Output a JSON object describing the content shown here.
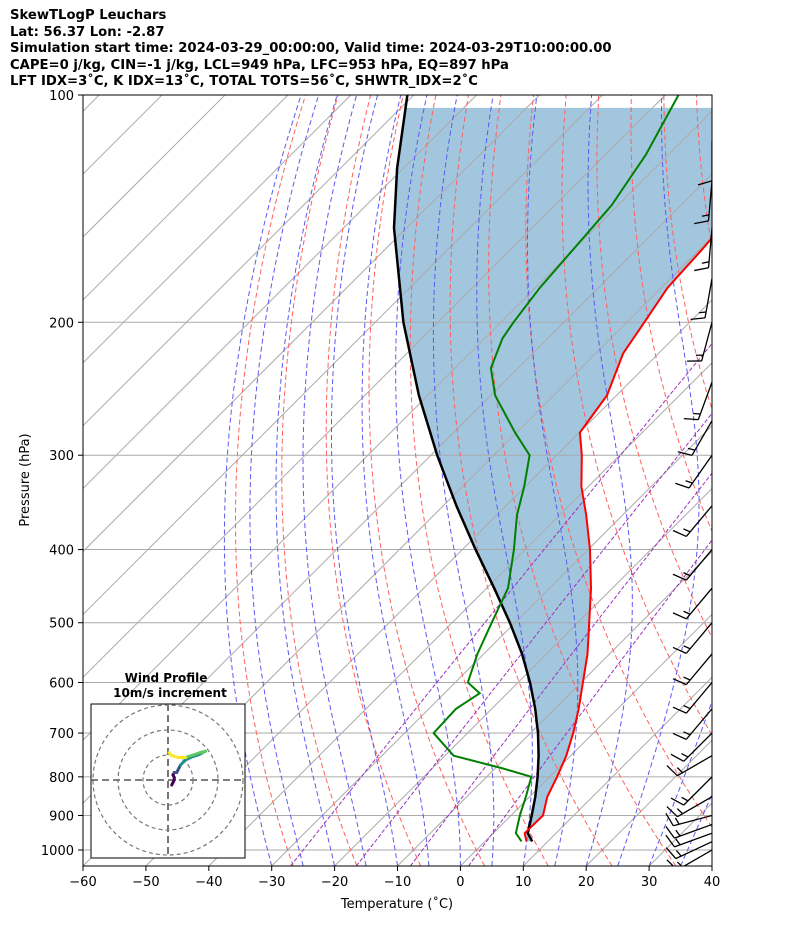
{
  "title": {
    "line1": "SkewTLogP Leuchars",
    "line2": "Lat: 56.37   Lon: -2.87",
    "line3": "Simulation start time: 2024-03-29_00:00:00, Valid time: 2024-03-29T10:00:00.00",
    "line4": "CAPE=0 j/kg, CIN=-1 j/kg, LCL=949 hPa, LFC=953 hPa, EQ=897 hPa",
    "line5": "LFT IDX=3˚C, K IDX=13˚C, TOTAL TOTS=56˚C, SHWTR_IDX=2˚C"
  },
  "colors": {
    "temperature": "#ff0000",
    "dewpoint": "#008000",
    "parcel": "#000000",
    "shading": "#a3c6df",
    "dry_adiabat": "#ff6060",
    "moist_adiabat": "#5a5af0",
    "mixing_ratio": "#9b30c0",
    "isotherm": "#aaaaaa",
    "isobar": "#aaaaaa",
    "barb": "#000000"
  },
  "chart_data": {
    "type": "skew-t",
    "xlabel": "Temperature (˚C)",
    "ylabel": "Pressure (hPa)",
    "xlim": [
      -60,
      40
    ],
    "ylim": [
      1050,
      100
    ],
    "x_ticks": [
      "−60",
      "−50",
      "−40",
      "−30",
      "−20",
      "−10",
      "0",
      "10",
      "20",
      "30",
      "40"
    ],
    "x_tick_values": [
      -60,
      -50,
      -40,
      -30,
      -20,
      -10,
      0,
      10,
      20,
      30,
      40
    ],
    "y_ticks": [
      "100",
      "200",
      "300",
      "400",
      "500",
      "600",
      "700",
      "800",
      "900",
      "1000"
    ],
    "y_tick_values": [
      100,
      200,
      300,
      400,
      500,
      600,
      700,
      800,
      900,
      1000
    ],
    "grid": true,
    "log_pressure": true,
    "temperature": {
      "pressure": [
        974,
        950,
        900,
        850,
        800,
        750,
        700,
        650,
        600,
        550,
        500,
        450,
        400,
        360,
        330,
        300,
        280,
        250,
        220,
        200,
        180,
        160,
        140,
        120,
        100
      ],
      "temp": [
        6.6,
        5.0,
        5.1,
        2.8,
        1.2,
        -0.7,
        -3.2,
        -6.2,
        -9.7,
        -13.5,
        -18.2,
        -23.4,
        -29.7,
        -35.8,
        -41.1,
        -46.0,
        -49.9,
        -51.5,
        -55.6,
        -57.2,
        -59.0,
        -59.6,
        -60.6,
        -62.1,
        -63.8
      ]
    },
    "dewpoint": {
      "pressure": [
        974,
        950,
        900,
        850,
        800,
        780,
        750,
        700,
        650,
        620,
        600,
        550,
        500,
        450,
        400,
        360,
        330,
        300,
        280,
        250,
        230,
        210,
        200,
        180,
        160,
        140,
        120,
        100
      ],
      "dewpoint": [
        5.8,
        3.6,
        1.4,
        -0.6,
        -2.9,
        -8.7,
        -18.6,
        -25.4,
        -25.7,
        -24.4,
        -28.0,
        -31.0,
        -33.7,
        -36.6,
        -41.8,
        -46.8,
        -50.2,
        -54.3,
        -60.2,
        -69.3,
        -74.3,
        -77.2,
        -78.0,
        -79.3,
        -80.1,
        -81.0,
        -83.6,
        -87.9
      ]
    },
    "parcel": {
      "pressure": [
        974,
        950,
        900,
        850,
        800,
        750,
        700,
        650,
        600,
        550,
        500,
        450,
        400,
        350,
        300,
        250,
        200,
        150,
        125,
        100
      ],
      "temp": [
        7.5,
        5.5,
        3.3,
        0.9,
        -1.9,
        -5.1,
        -8.8,
        -13.1,
        -18.1,
        -23.9,
        -30.8,
        -38.8,
        -47.9,
        -57.9,
        -69.0,
        -81.4,
        -95.5,
        -112.0,
        -121.0,
        -131.0
      ]
    },
    "wind_barbs": [
      {
        "pressure": 1000,
        "speed_kt": 15,
        "direction_deg": 240
      },
      {
        "pressure": 975,
        "speed_kt": 15,
        "direction_deg": 245
      },
      {
        "pressure": 950,
        "speed_kt": 15,
        "direction_deg": 250
      },
      {
        "pressure": 925,
        "speed_kt": 15,
        "direction_deg": 250
      },
      {
        "pressure": 900,
        "speed_kt": 15,
        "direction_deg": 255
      },
      {
        "pressure": 850,
        "speed_kt": 15,
        "direction_deg": 240
      },
      {
        "pressure": 800,
        "speed_kt": 15,
        "direction_deg": 225
      },
      {
        "pressure": 750,
        "speed_kt": 15,
        "direction_deg": 240
      },
      {
        "pressure": 700,
        "speed_kt": 15,
        "direction_deg": 225
      },
      {
        "pressure": 650,
        "speed_kt": 15,
        "direction_deg": 220
      },
      {
        "pressure": 600,
        "speed_kt": 15,
        "direction_deg": 220
      },
      {
        "pressure": 550,
        "speed_kt": 15,
        "direction_deg": 220
      },
      {
        "pressure": 500,
        "speed_kt": 15,
        "direction_deg": 220
      },
      {
        "pressure": 450,
        "speed_kt": 15,
        "direction_deg": 220
      },
      {
        "pressure": 400,
        "speed_kt": 15,
        "direction_deg": 220
      },
      {
        "pressure": 350,
        "speed_kt": 15,
        "direction_deg": 220
      },
      {
        "pressure": 300,
        "speed_kt": 15,
        "direction_deg": 215
      },
      {
        "pressure": 270,
        "speed_kt": 15,
        "direction_deg": 210
      },
      {
        "pressure": 240,
        "speed_kt": 15,
        "direction_deg": 200
      },
      {
        "pressure": 200,
        "speed_kt": 15,
        "direction_deg": 195
      },
      {
        "pressure": 175,
        "speed_kt": 15,
        "direction_deg": 190
      },
      {
        "pressure": 150,
        "speed_kt": 15,
        "direction_deg": 185
      },
      {
        "pressure": 130,
        "speed_kt": 15,
        "direction_deg": 185
      },
      {
        "pressure": 115,
        "speed_kt": 10,
        "direction_deg": 180
      }
    ],
    "hodograph": {
      "title": "Wind Profile",
      "subtitle": "10m/s increment",
      "rings_ms": [
        10,
        20,
        30
      ],
      "u": [
        1.5,
        2.0,
        2.5,
        2.5,
        2.0,
        2.5,
        3.5,
        4.0,
        4.5,
        5.0,
        6.0,
        7.0,
        9.0,
        12.0,
        14.0,
        15.0,
        13.0,
        10.0,
        7.0,
        4.0,
        1.0,
        0.5
      ],
      "v": [
        -2.0,
        -1.0,
        0.0,
        1.0,
        2.0,
        3.0,
        3.0,
        4.0,
        5.0,
        6.0,
        7.0,
        8.0,
        9.0,
        10.0,
        11.0,
        11.5,
        11.0,
        10.0,
        9.0,
        9.0,
        10.0,
        11.0
      ]
    }
  }
}
